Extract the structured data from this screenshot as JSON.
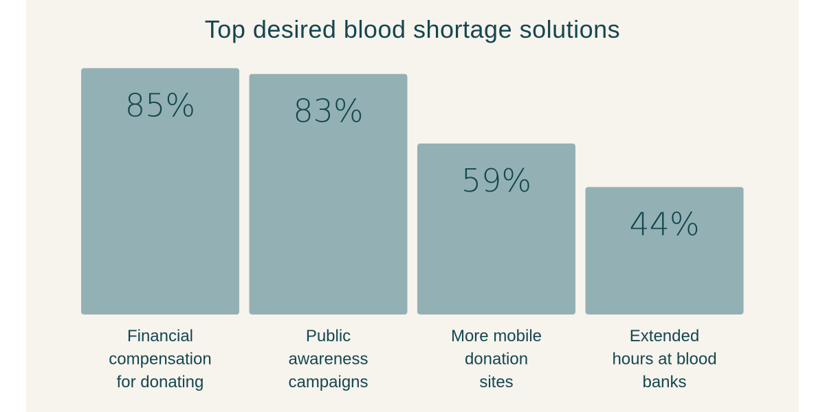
{
  "chart_data": {
    "type": "bar",
    "title": "Top desired blood shortage solutions",
    "categories": [
      "Financial compensation for donating",
      "Public awareness campaigns",
      "More mobile donation sites",
      "Extended hours at blood banks"
    ],
    "category_lines": [
      [
        "Financial",
        "compensation",
        "for donating"
      ],
      [
        "Public",
        "awareness",
        "campaigns"
      ],
      [
        "More mobile",
        "donation",
        "sites"
      ],
      [
        "Extended",
        "hours at blood",
        "banks"
      ]
    ],
    "values": [
      85,
      83,
      59,
      44
    ],
    "value_labels": [
      "85%",
      "83%",
      "59%",
      "44%"
    ],
    "unit": "%",
    "ylim": [
      0,
      100
    ],
    "grid": false,
    "legend": "none"
  },
  "colors": {
    "background": "#f7f3ed",
    "bar": "#93b1b4",
    "text": "#14474f"
  }
}
